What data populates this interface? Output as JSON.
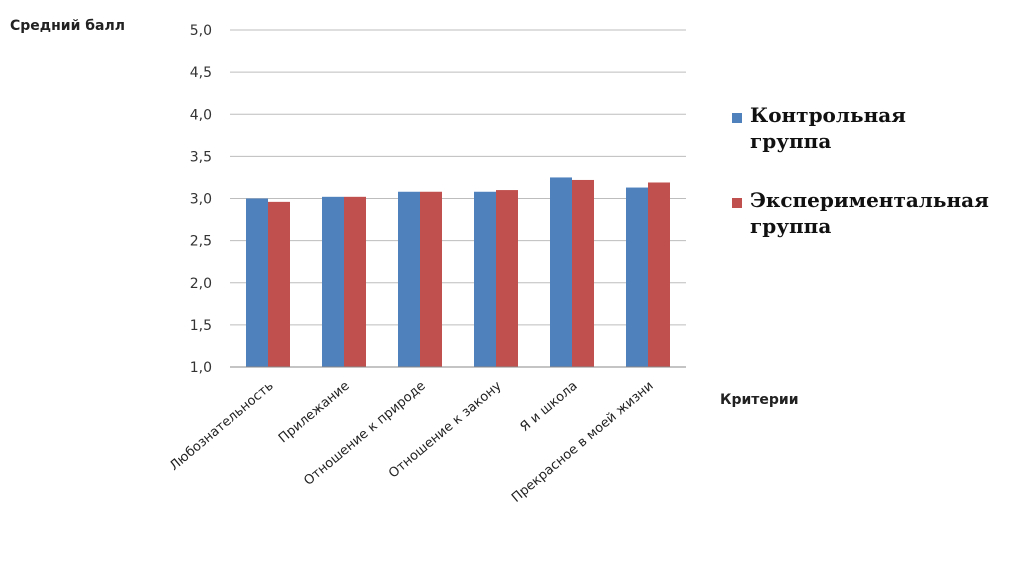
{
  "chart_data": {
    "type": "bar",
    "ylabel": "Средний балл",
    "xlabel": "Критерии",
    "categories": [
      "Любознательность",
      "Прилежание",
      "Отношение к природе",
      "Отношение к закону",
      "Я и школа",
      "Прекрасное в моей жизни"
    ],
    "series": [
      {
        "name": "Контрольная группа",
        "color": "#4f81bd",
        "values": [
          3.0,
          3.02,
          3.08,
          3.08,
          3.25,
          3.13
        ]
      },
      {
        "name": "Экспериментальная группа",
        "color": "#c0504d",
        "values": [
          2.96,
          3.02,
          3.08,
          3.1,
          3.22,
          3.19
        ]
      }
    ],
    "ylim": [
      1.0,
      5.0
    ],
    "yticks": [
      "1,0",
      "1,5",
      "2,0",
      "2,5",
      "3,0",
      "3,5",
      "4,0",
      "4,5",
      "5,0"
    ],
    "grid": true,
    "legend_position": "right",
    "legend_lines": [
      [
        "Контрольная",
        "группа"
      ],
      [
        "Экспериментальная",
        "группа"
      ]
    ]
  }
}
